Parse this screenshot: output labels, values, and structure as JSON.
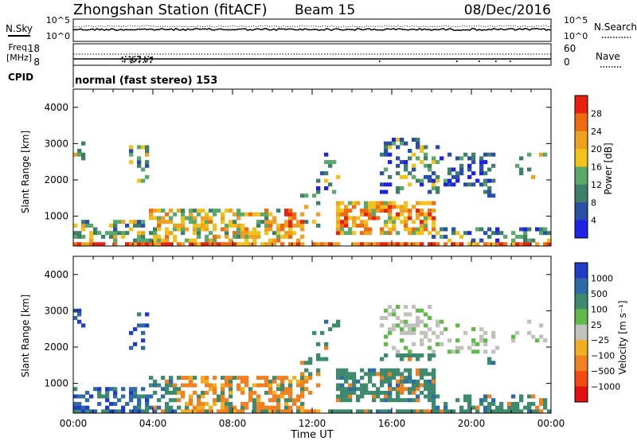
{
  "header": {
    "title": "Zhongshan Station (fitACF)",
    "beam": "Beam 15",
    "date": "08/Dec/2016"
  },
  "nsky_panel": {
    "left_label": "N.Sky",
    "right_label": "N.Search",
    "left_ticks": [
      "10^5",
      "10^0"
    ],
    "right_ticks": [
      "10^5",
      "10^0"
    ]
  },
  "freq_panel": {
    "left_label_1": "Freq.",
    "left_label_2": "[MHz]",
    "right_label": "Nave",
    "left_ticks": [
      "18",
      "8"
    ],
    "right_ticks": [
      "60",
      "0"
    ]
  },
  "cpid": {
    "label": "CPID",
    "text": "normal (fast stereo) 153"
  },
  "chart_data": [
    {
      "type": "heatmap",
      "name": "power",
      "xlabel": "",
      "ylabel": "Slant Range [km]",
      "y_ticks": [
        "1000",
        "2000",
        "3000",
        "4000"
      ],
      "colorbar_label": "Power [dB]",
      "colorbar_ticks": [
        "4",
        "8",
        "12",
        "16",
        "20",
        "24",
        "28"
      ],
      "colors": [
        "#1e22e6",
        "#2a4fa8",
        "#3f7f6a",
        "#5aa86a",
        "#f2c21a",
        "#f0a020",
        "#f06a10",
        "#e82010"
      ],
      "xlim": [
        "00:00",
        "24:00"
      ],
      "ylim": [
        180,
        4500
      ]
    },
    {
      "type": "heatmap",
      "name": "velocity",
      "xlabel": "Time UT",
      "ylabel": "Slant Range [km]",
      "y_ticks": [
        "1000",
        "2000",
        "3000",
        "4000"
      ],
      "colorbar_label": "Velocity [m s⁻¹]",
      "colorbar_ticks": [
        "1000",
        "500",
        "100",
        "25",
        "−25",
        "−100",
        "−500",
        "−1000"
      ],
      "colors": [
        "#1e3cc8",
        "#2f6aa8",
        "#3e8a6e",
        "#5fba4a",
        "#c0c0bc",
        "#f2b020",
        "#f08020",
        "#f04a10",
        "#e01010"
      ],
      "x_ticks": [
        "00:00",
        "04:00",
        "08:00",
        "12:00",
        "16:00",
        "20:00",
        "00:00"
      ],
      "xlim": [
        "00:00",
        "24:00"
      ],
      "ylim": [
        180,
        4500
      ]
    }
  ]
}
